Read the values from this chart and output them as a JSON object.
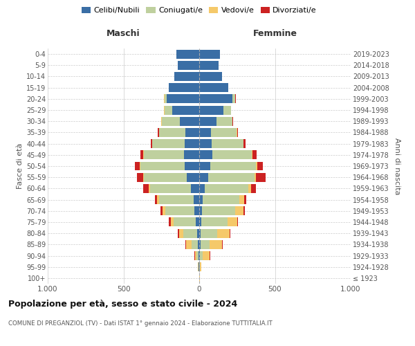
{
  "age_groups": [
    "100+",
    "95-99",
    "90-94",
    "85-89",
    "80-84",
    "75-79",
    "70-74",
    "65-69",
    "60-64",
    "55-59",
    "50-54",
    "45-49",
    "40-44",
    "35-39",
    "30-34",
    "25-29",
    "20-24",
    "15-19",
    "10-14",
    "5-9",
    "0-4"
  ],
  "birth_years": [
    "≤ 1923",
    "1924-1928",
    "1929-1933",
    "1934-1938",
    "1939-1943",
    "1944-1948",
    "1949-1953",
    "1954-1958",
    "1959-1963",
    "1964-1968",
    "1969-1973",
    "1974-1978",
    "1979-1983",
    "1984-1988",
    "1989-1993",
    "1994-1998",
    "1999-2003",
    "2004-2008",
    "2009-2013",
    "2014-2018",
    "2019-2023"
  ],
  "colors": {
    "celibi": "#3A6EA5",
    "coniugati": "#BFD09E",
    "vedovi": "#F5C96A",
    "divorziati": "#CC2222"
  },
  "male": {
    "celibi": [
      2,
      3,
      5,
      8,
      15,
      22,
      30,
      35,
      55,
      80,
      95,
      100,
      95,
      90,
      130,
      180,
      215,
      200,
      165,
      140,
      150
    ],
    "coniugati": [
      0,
      2,
      12,
      42,
      90,
      145,
      195,
      230,
      270,
      285,
      295,
      265,
      215,
      175,
      118,
      50,
      12,
      2,
      0,
      0,
      0
    ],
    "vedovi": [
      0,
      2,
      12,
      38,
      28,
      22,
      18,
      12,
      8,
      6,
      4,
      3,
      2,
      2,
      1,
      1,
      4,
      0,
      0,
      0,
      0
    ],
    "divorziati": [
      0,
      0,
      2,
      5,
      8,
      10,
      12,
      15,
      35,
      40,
      32,
      18,
      8,
      6,
      4,
      2,
      2,
      0,
      0,
      0,
      0
    ]
  },
  "female": {
    "celibi": [
      2,
      2,
      4,
      7,
      9,
      12,
      18,
      22,
      38,
      60,
      75,
      88,
      82,
      78,
      112,
      160,
      218,
      192,
      152,
      128,
      138
    ],
    "coniugati": [
      0,
      2,
      18,
      60,
      112,
      175,
      220,
      245,
      285,
      305,
      300,
      260,
      210,
      170,
      108,
      48,
      18,
      2,
      0,
      0,
      0
    ],
    "vedovi": [
      1,
      8,
      48,
      82,
      78,
      62,
      52,
      32,
      18,
      10,
      8,
      5,
      2,
      2,
      1,
      1,
      2,
      0,
      0,
      0,
      0
    ],
    "divorziati": [
      0,
      0,
      2,
      4,
      6,
      8,
      10,
      10,
      32,
      62,
      38,
      25,
      10,
      6,
      4,
      2,
      2,
      0,
      0,
      0,
      0
    ]
  },
  "xlim": 1000,
  "title": "Popolazione per età, sesso e stato civile - 2024",
  "subtitle": "COMUNE DI PREGANZIOL (TV) - Dati ISTAT 1° gennaio 2024 - Elaborazione TUTTITALIA.IT",
  "xlabel_left": "Maschi",
  "xlabel_right": "Femmine",
  "ylabel_left": "Fasce di età",
  "ylabel_right": "Anni di nascita",
  "legend_labels": [
    "Celibi/Nubili",
    "Coniugati/e",
    "Vedovi/e",
    "Divorziati/e"
  ],
  "background_color": "#ffffff",
  "grid_color": "#cccccc"
}
